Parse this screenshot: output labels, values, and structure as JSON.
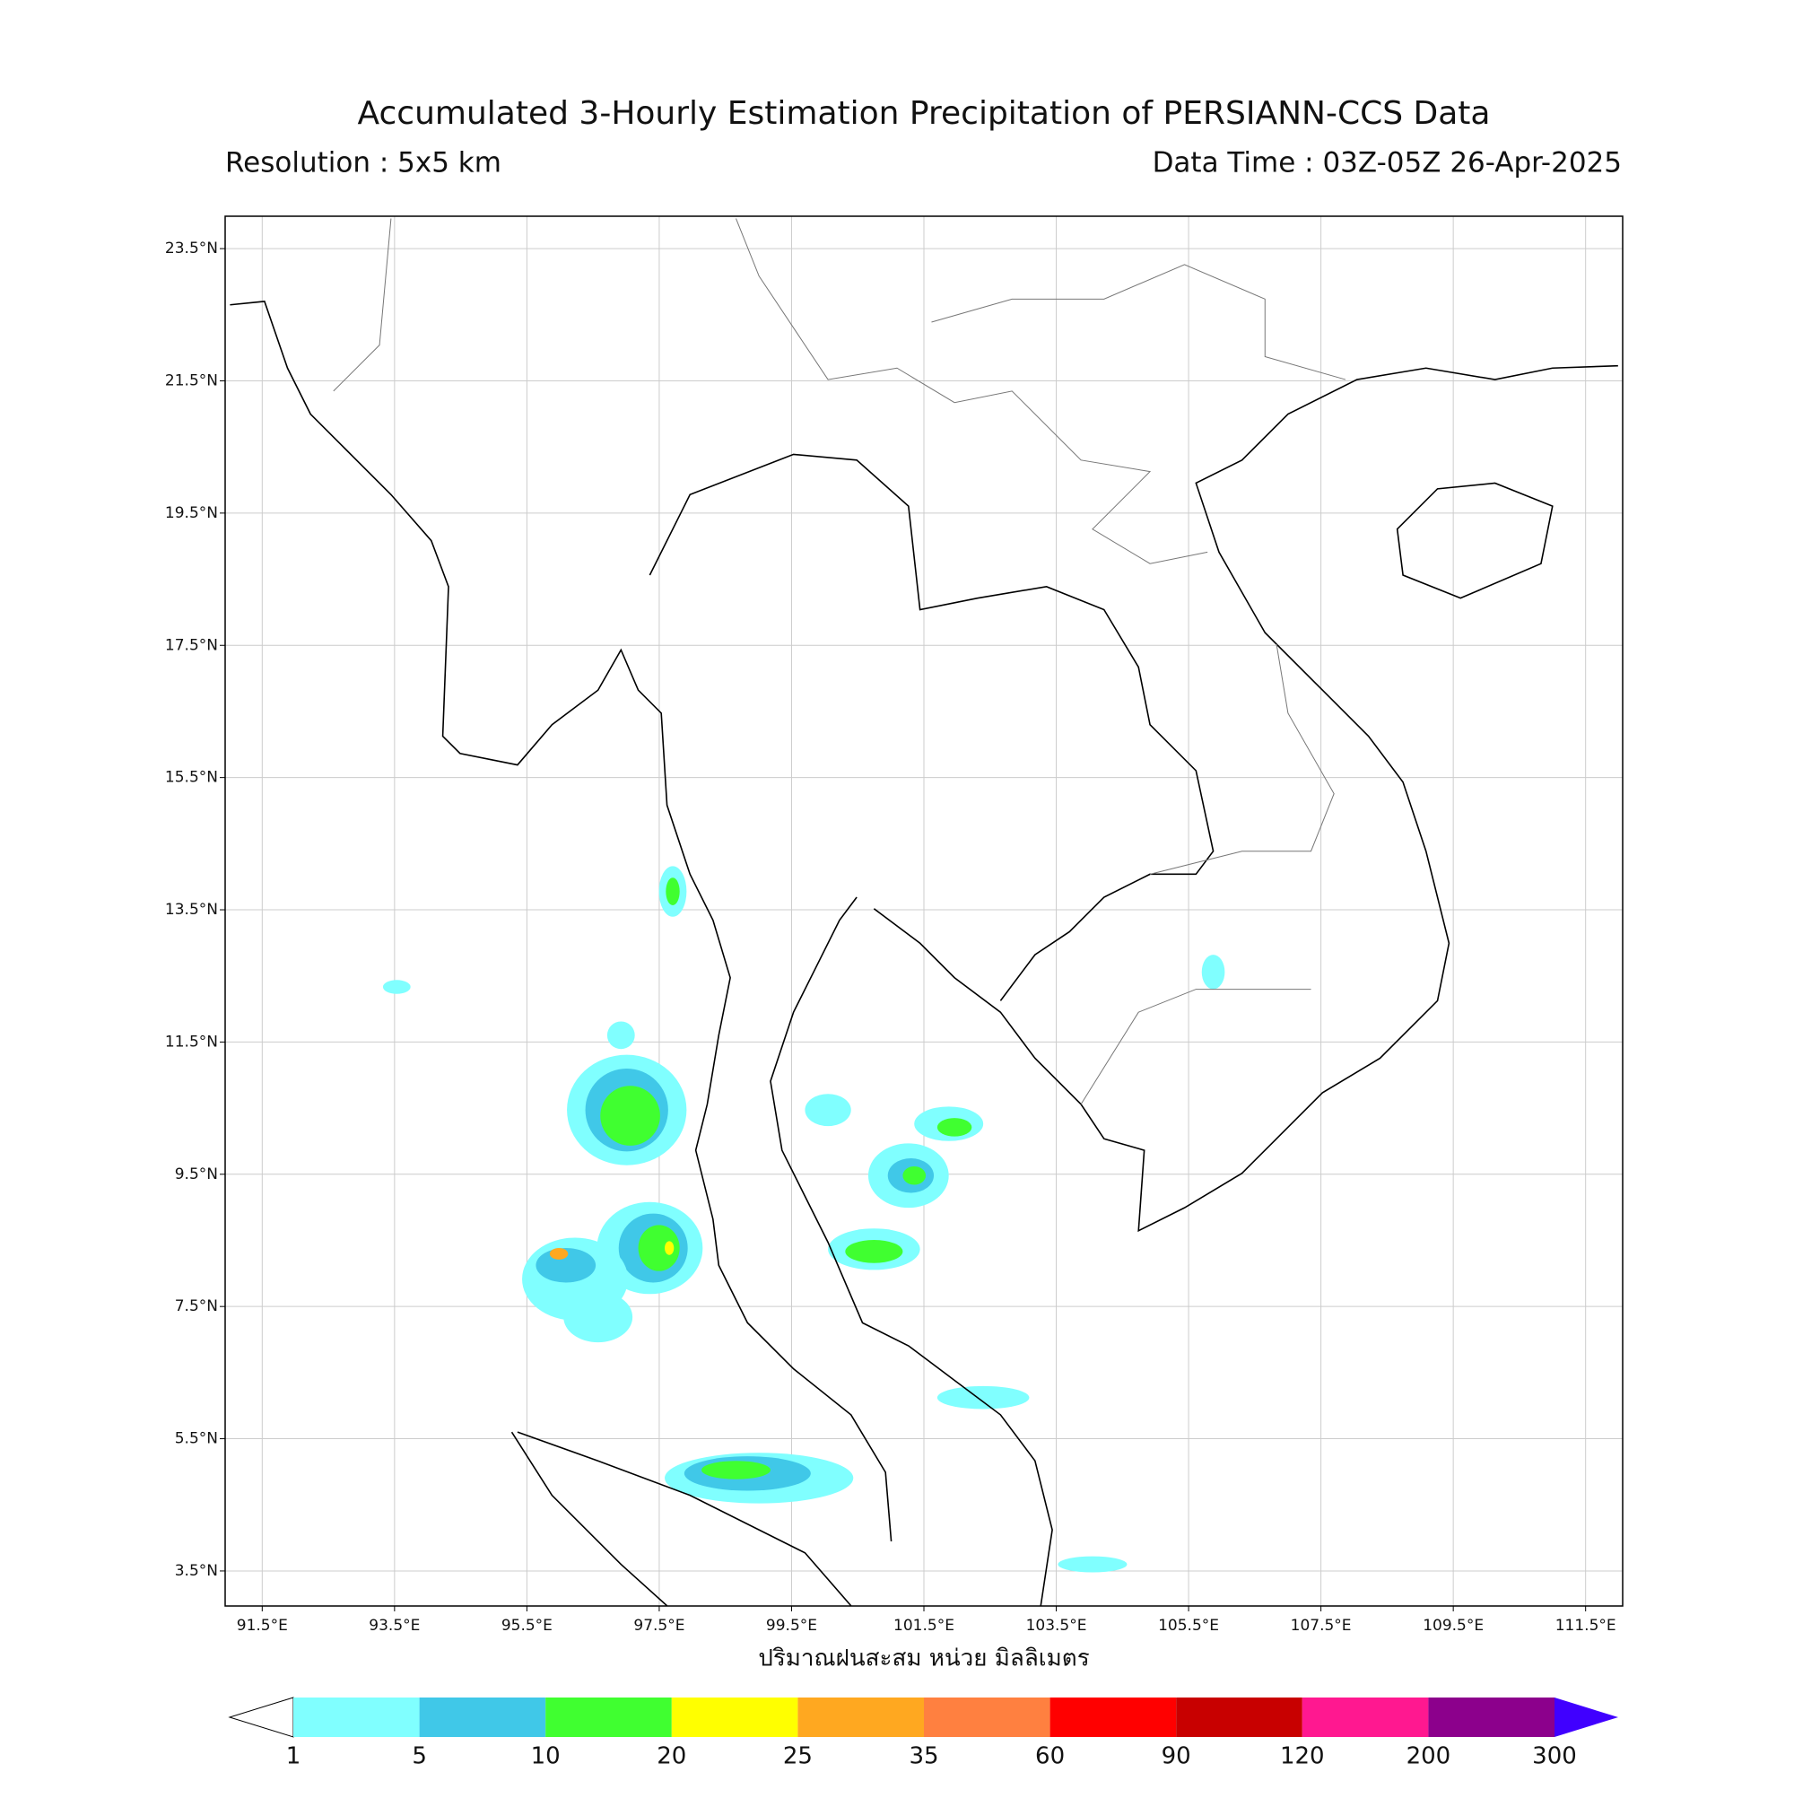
{
  "map": {
    "title": "Accumulated 3-Hourly Estimation Precipitation of PERSIANN-CCS Data",
    "subtitle_left": "Resolution : 5x5 km",
    "subtitle_right": "Data Time : 03Z-05Z 26-Apr-2025",
    "xlabel": "ปริมาณฝนสะสม หน่วย มิลลิเมตร",
    "lonlim": [
      90.94,
      112.06
    ],
    "latlim": [
      2.97,
      23.99
    ],
    "lon_ticks": [
      {
        "value": 91.5,
        "label": "91.5°E"
      },
      {
        "value": 93.5,
        "label": "93.5°E"
      },
      {
        "value": 95.5,
        "label": "95.5°E"
      },
      {
        "value": 97.5,
        "label": "97.5°E"
      },
      {
        "value": 99.5,
        "label": "99.5°E"
      },
      {
        "value": 101.5,
        "label": "101.5°E"
      },
      {
        "value": 103.5,
        "label": "103.5°E"
      },
      {
        "value": 105.5,
        "label": "105.5°E"
      },
      {
        "value": 107.5,
        "label": "107.5°E"
      },
      {
        "value": 109.5,
        "label": "109.5°E"
      },
      {
        "value": 111.5,
        "label": "111.5°E"
      }
    ],
    "lat_ticks": [
      {
        "value": 23.5,
        "label": "23.5°N"
      },
      {
        "value": 21.5,
        "label": "21.5°N"
      },
      {
        "value": 19.5,
        "label": "19.5°N"
      },
      {
        "value": 17.5,
        "label": "17.5°N"
      },
      {
        "value": 15.5,
        "label": "15.5°N"
      },
      {
        "value": 13.5,
        "label": "13.5°N"
      },
      {
        "value": 11.5,
        "label": "11.5°N"
      },
      {
        "value": 9.5,
        "label": "9.5°N"
      },
      {
        "value": 7.5,
        "label": "7.5°N"
      },
      {
        "value": 5.5,
        "label": "5.5°N"
      },
      {
        "value": 3.5,
        "label": "3.5°N"
      }
    ],
    "grid": true,
    "colorbar": {
      "levels": [
        1,
        5,
        10,
        20,
        25,
        35,
        60,
        90,
        120,
        200,
        300
      ],
      "colors": [
        "#80ffff",
        "#40c8e8",
        "#40ff30",
        "#ffff00",
        "#ffa820",
        "#ff8040",
        "#ff0000",
        "#c80000",
        "#ff1890",
        "#8c008c"
      ],
      "under_color": "#ffffff",
      "over_color": "#4000ff"
    }
  }
}
